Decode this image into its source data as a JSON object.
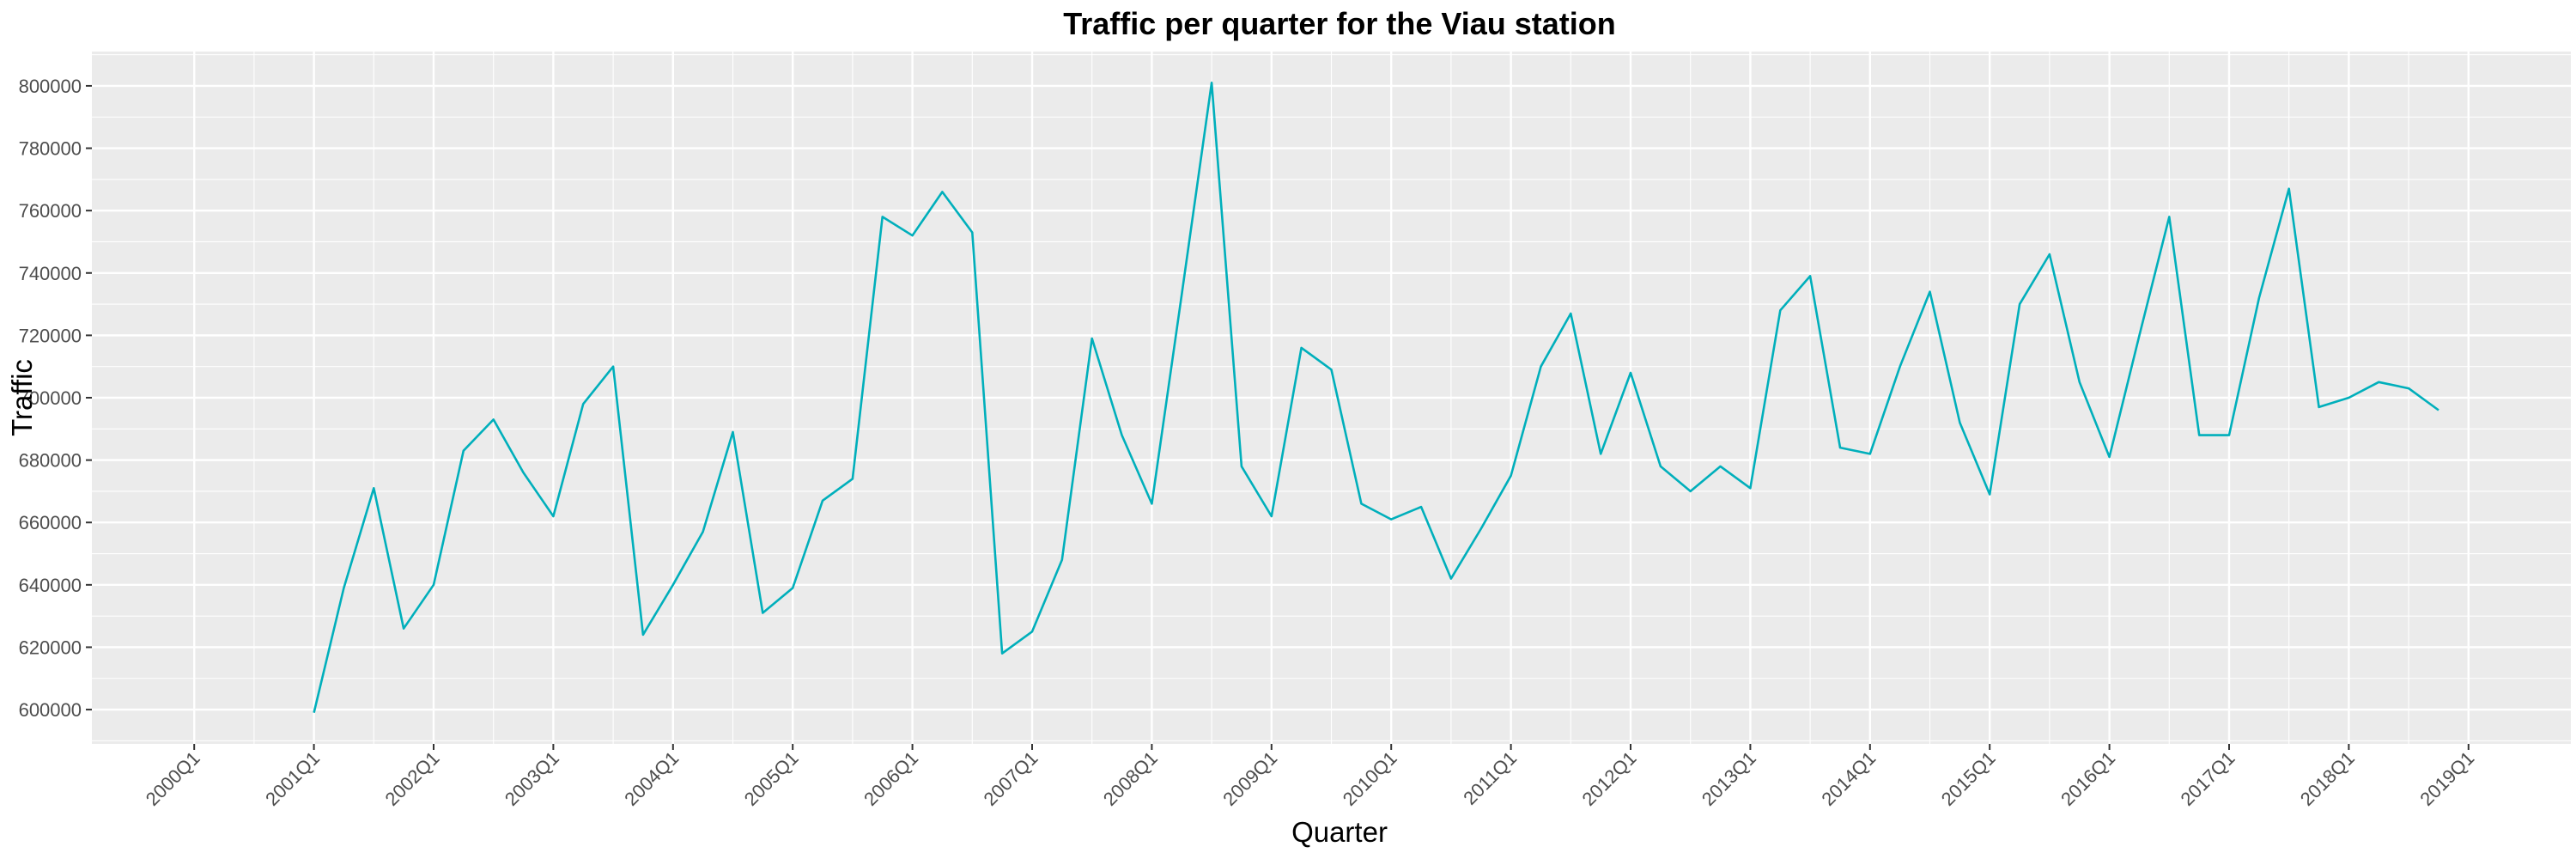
{
  "chart_data": {
    "type": "line",
    "title": "Traffic per quarter for the Viau station",
    "xlabel": "Quarter",
    "ylabel": "Traffic",
    "x_ticks": [
      "2000Q1",
      "2001Q1",
      "2002Q1",
      "2003Q1",
      "2004Q1",
      "2005Q1",
      "2006Q1",
      "2007Q1",
      "2008Q1",
      "2009Q1",
      "2010Q1",
      "2011Q1",
      "2012Q1",
      "2013Q1",
      "2014Q1",
      "2015Q1",
      "2016Q1",
      "2017Q1",
      "2018Q1",
      "2019Q1"
    ],
    "y_ticks": [
      600000,
      620000,
      640000,
      660000,
      680000,
      700000,
      720000,
      740000,
      760000,
      780000,
      800000
    ],
    "y_tick_labels": [
      "600000",
      "620000",
      "640000",
      "660000",
      "680000",
      "700000",
      "720000",
      "740000",
      "760000",
      "780000",
      "800000"
    ],
    "xlim": [
      "2000Q1",
      "2019Q1"
    ],
    "ylim": [
      589000,
      811000
    ],
    "grid": true,
    "line_color": "#00AFBB",
    "panel_color": "#EBEBEB",
    "x": [
      "2001Q1",
      "2001Q2",
      "2001Q3",
      "2001Q4",
      "2002Q1",
      "2002Q2",
      "2002Q3",
      "2002Q4",
      "2003Q1",
      "2003Q2",
      "2003Q3",
      "2003Q4",
      "2004Q1",
      "2004Q2",
      "2004Q3",
      "2004Q4",
      "2005Q1",
      "2005Q2",
      "2005Q3",
      "2005Q4",
      "2006Q1",
      "2006Q2",
      "2006Q3",
      "2006Q4",
      "2007Q1",
      "2007Q2",
      "2007Q3",
      "2007Q4",
      "2008Q1",
      "2008Q2",
      "2008Q3",
      "2008Q4",
      "2009Q1",
      "2009Q2",
      "2009Q3",
      "2009Q4",
      "2010Q1",
      "2010Q2",
      "2010Q3",
      "2010Q4",
      "2011Q1",
      "2011Q2",
      "2011Q3",
      "2011Q4",
      "2012Q1",
      "2012Q2",
      "2012Q3",
      "2012Q4",
      "2013Q1",
      "2013Q2",
      "2013Q3",
      "2013Q4",
      "2014Q1",
      "2014Q2",
      "2014Q3",
      "2014Q4",
      "2015Q1",
      "2015Q2",
      "2015Q3",
      "2015Q4",
      "2016Q1",
      "2016Q2",
      "2016Q3",
      "2016Q4",
      "2017Q1",
      "2017Q2",
      "2017Q3",
      "2017Q4",
      "2018Q1",
      "2018Q2",
      "2018Q3",
      "2018Q4"
    ],
    "values": [
      599000,
      639000,
      671000,
      626000,
      640000,
      683000,
      693000,
      676000,
      662000,
      698000,
      710000,
      624000,
      640000,
      657000,
      689000,
      631000,
      639000,
      667000,
      674000,
      758000,
      752000,
      766000,
      753000,
      618000,
      625000,
      648000,
      719000,
      688000,
      666000,
      733000,
      801000,
      678000,
      662000,
      716000,
      709000,
      666000,
      661000,
      665000,
      642000,
      658000,
      675000,
      710000,
      727000,
      682000,
      708000,
      678000,
      670000,
      678000,
      671000,
      728000,
      739000,
      684000,
      682000,
      710000,
      734000,
      692000,
      669000,
      730000,
      746000,
      705000,
      681000,
      720000,
      758000,
      688000,
      688000,
      732000,
      767000,
      697000,
      700000,
      705000,
      703000,
      696000
    ]
  }
}
